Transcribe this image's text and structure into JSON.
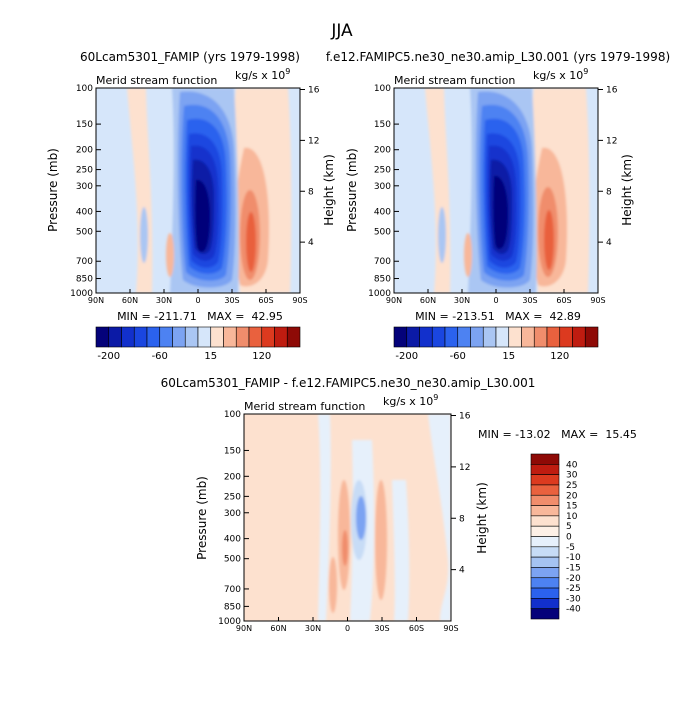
{
  "page": {
    "season": "JJA",
    "titles": {
      "left": "60Lcam5301_FAMIP (yrs 1979-1998)",
      "right": "f.e12.FAMIPC5.ne30_ne30.amip_L30.001 (yrs 1979-1998)",
      "diff": "60Lcam5301_FAMIP - f.e12.FAMIPC5.ne30_ne30.amip_L30.001"
    }
  },
  "chart_data": [
    {
      "type": "heatmap",
      "title": "Merid stream function",
      "units": "kg/s x 10^9",
      "units_base": "kg/s x 10",
      "units_exp": "9",
      "x": [
        "90N",
        "60N",
        "30N",
        "0",
        "30S",
        "60S",
        "90S"
      ],
      "y": [
        100,
        150,
        200,
        250,
        300,
        400,
        500,
        700,
        850,
        1000
      ],
      "y_axis_right": [
        "4",
        "8",
        "12",
        "16"
      ],
      "ylabel": "Pressure (mb)",
      "ylabel_right": "Height (km)",
      "ylim": [
        1000,
        100
      ],
      "y_scale": "log",
      "stats": {
        "min": -211.71,
        "max": 42.95
      },
      "stats_text": "MIN = -211.71   MAX =  42.95",
      "colorbar_labels": [
        "-200",
        "-60",
        "15",
        "120"
      ],
      "colorbar_colors": [
        "#04027a",
        "#0b1aa6",
        "#1230cc",
        "#1a46e0",
        "#2b62ee",
        "#4d82f2",
        "#7ca3f2",
        "#aac6f3",
        "#d6e6fa",
        "#fde1cf",
        "#f8b79a",
        "#f08d6c",
        "#e9613e",
        "#dc3a1f",
        "#bf1c10",
        "#8e0a06"
      ],
      "legend": "bottom"
    },
    {
      "type": "heatmap",
      "title": "Merid stream function",
      "units": "kg/s x 10^9",
      "units_base": "kg/s x 10",
      "units_exp": "9",
      "x": [
        "90N",
        "60N",
        "30N",
        "0",
        "30S",
        "60S",
        "90S"
      ],
      "y": [
        100,
        150,
        200,
        250,
        300,
        400,
        500,
        700,
        850,
        1000
      ],
      "y_axis_right": [
        "4",
        "8",
        "12",
        "16"
      ],
      "ylabel": "Pressure (mb)",
      "ylabel_right": "Height (km)",
      "ylim": [
        1000,
        100
      ],
      "y_scale": "log",
      "stats": {
        "min": -213.51,
        "max": 42.89
      },
      "stats_text": "MIN = -213.51   MAX =  42.89",
      "colorbar_labels": [
        "-200",
        "-60",
        "15",
        "120"
      ],
      "colorbar_colors": [
        "#04027a",
        "#0b1aa6",
        "#1230cc",
        "#1a46e0",
        "#2b62ee",
        "#4d82f2",
        "#7ca3f2",
        "#aac6f3",
        "#d6e6fa",
        "#fde1cf",
        "#f8b79a",
        "#f08d6c",
        "#e9613e",
        "#dc3a1f",
        "#bf1c10",
        "#8e0a06"
      ],
      "legend": "bottom"
    },
    {
      "type": "heatmap",
      "title": "Merid stream function",
      "units": "kg/s x 10^9",
      "units_base": "kg/s x 10",
      "units_exp": "9",
      "x": [
        "90N",
        "60N",
        "30N",
        "0",
        "30S",
        "60S",
        "90S"
      ],
      "y": [
        100,
        150,
        200,
        250,
        300,
        400,
        500,
        700,
        850,
        1000
      ],
      "y_axis_right": [
        "4",
        "8",
        "12",
        "16"
      ],
      "ylabel": "Pressure (mb)",
      "ylabel_right": "Height (km)",
      "ylim": [
        1000,
        100
      ],
      "y_scale": "log",
      "stats": {
        "min": -13.02,
        "max": 15.45
      },
      "stats_text": "MIN = -13.02   MAX =  15.45",
      "colorbar_labels": [
        "40",
        "30",
        "25",
        "20",
        "15",
        "10",
        "5",
        "0",
        "-5",
        "-10",
        "-15",
        "-20",
        "-25",
        "-30",
        "-40"
      ],
      "colorbar_colors": [
        "#8e0a06",
        "#bf1c10",
        "#dc3a1f",
        "#e9613e",
        "#f08d6c",
        "#f8b79a",
        "#fde1cf",
        "#fdf0e6",
        "#e6f0fb",
        "#c7dcf6",
        "#a5c3f2",
        "#7ca3f2",
        "#4d82f2",
        "#2b62ee",
        "#1230cc",
        "#04027a"
      ],
      "legend": "right"
    }
  ]
}
